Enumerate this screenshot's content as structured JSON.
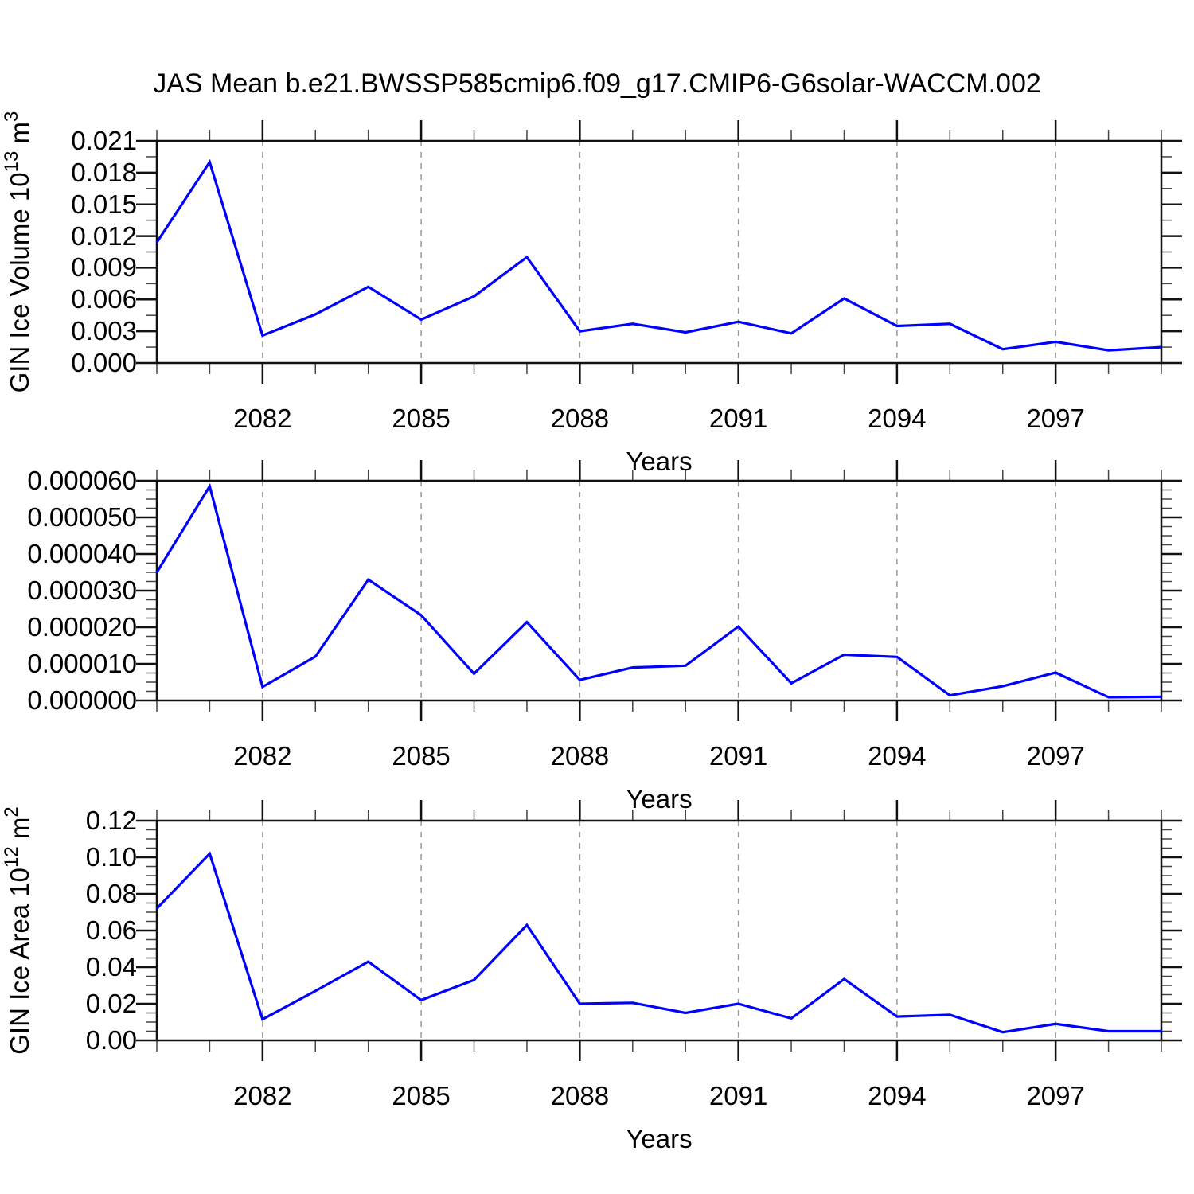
{
  "title": "JAS Mean b.e21.BWSSP585cmip6.f09_g17.CMIP6-G6solar-WACCM.002",
  "style": {
    "line_color": "#0000ff",
    "grid_color": "#999999",
    "frame_color": "#111111",
    "major_tick_color": "#111111",
    "minor_tick_color": "#444444",
    "background": "#ffffff"
  },
  "x_axis": {
    "label": "Years",
    "years": [
      2080,
      2081,
      2082,
      2083,
      2084,
      2085,
      2086,
      2087,
      2088,
      2089,
      2090,
      2091,
      2092,
      2093,
      2094,
      2095,
      2096,
      2097,
      2098,
      2099
    ],
    "labeled_ticks": [
      2082,
      2085,
      2088,
      2091,
      2094,
      2097
    ]
  },
  "chart_data": [
    {
      "type": "line",
      "name": "GIN Ice Volume",
      "ylabel_segments": [
        {
          "t": "GIN Ice Volume 10"
        },
        {
          "t": "13",
          "sup": true
        },
        {
          "t": " m"
        },
        {
          "t": "3",
          "sup": true
        }
      ],
      "xlabel": "Years",
      "x": [
        2080,
        2081,
        2082,
        2083,
        2084,
        2085,
        2086,
        2087,
        2088,
        2089,
        2090,
        2091,
        2092,
        2093,
        2094,
        2095,
        2096,
        2097,
        2098,
        2099
      ],
      "values": [
        0.0114,
        0.019,
        0.0026,
        0.0046,
        0.0072,
        0.0041,
        0.0063,
        0.01,
        0.003,
        0.0037,
        0.0029,
        0.0039,
        0.0028,
        0.0061,
        0.0035,
        0.0037,
        0.0013,
        0.002,
        0.0012,
        0.0015
      ],
      "ylim": [
        0.0,
        0.021
      ],
      "yticks": [
        {
          "v": 0.0,
          "label": "0.000"
        },
        {
          "v": 0.003,
          "label": "0.003"
        },
        {
          "v": 0.006,
          "label": "0.006"
        },
        {
          "v": 0.009,
          "label": "0.009"
        },
        {
          "v": 0.012,
          "label": "0.012"
        },
        {
          "v": 0.015,
          "label": "0.015"
        },
        {
          "v": 0.018,
          "label": "0.018"
        },
        {
          "v": 0.021,
          "label": "0.021"
        }
      ],
      "y_minor_step": 0.0015,
      "x_labeled_ticks": [
        2082,
        2085,
        2088,
        2091,
        2094,
        2097
      ],
      "grid": "vertical-dashed"
    },
    {
      "type": "line",
      "name": "",
      "ylabel_segments": [],
      "xlabel": "Years",
      "x": [
        2080,
        2081,
        2082,
        2083,
        2084,
        2085,
        2086,
        2087,
        2088,
        2089,
        2090,
        2091,
        2092,
        2093,
        2094,
        2095,
        2096,
        2097,
        2098,
        2099
      ],
      "values": [
        3.5e-05,
        5.85e-05,
        3.7e-06,
        1.2e-05,
        3.3e-05,
        2.33e-05,
        7.3e-06,
        2.14e-05,
        5.6e-06,
        9e-06,
        9.5e-06,
        2.02e-05,
        4.7e-06,
        1.25e-05,
        1.19e-05,
        1.4e-06,
        3.9e-06,
        7.6e-06,
        9e-07,
        1e-06
      ],
      "ylim": [
        0.0,
        6e-05
      ],
      "yticks": [
        {
          "v": 0.0,
          "label": "0.000000"
        },
        {
          "v": 1e-05,
          "label": "0.000010"
        },
        {
          "v": 2e-05,
          "label": "0.000020"
        },
        {
          "v": 3e-05,
          "label": "0.000030"
        },
        {
          "v": 4e-05,
          "label": "0.000040"
        },
        {
          "v": 5e-05,
          "label": "0.000050"
        },
        {
          "v": 6e-05,
          "label": "0.000060"
        }
      ],
      "y_minor_step": 2.5e-06,
      "x_labeled_ticks": [
        2082,
        2085,
        2088,
        2091,
        2094,
        2097
      ],
      "grid": "vertical-dashed"
    },
    {
      "type": "line",
      "name": "GIN Ice Area",
      "ylabel_segments": [
        {
          "t": "GIN Ice Area 10"
        },
        {
          "t": "12",
          "sup": true
        },
        {
          "t": " m"
        },
        {
          "t": "2",
          "sup": true
        }
      ],
      "xlabel": "Years",
      "x": [
        2080,
        2081,
        2082,
        2083,
        2084,
        2085,
        2086,
        2087,
        2088,
        2089,
        2090,
        2091,
        2092,
        2093,
        2094,
        2095,
        2096,
        2097,
        2098,
        2099
      ],
      "values": [
        0.072,
        0.102,
        0.0115,
        0.027,
        0.043,
        0.022,
        0.033,
        0.063,
        0.02,
        0.0205,
        0.015,
        0.02,
        0.012,
        0.0335,
        0.013,
        0.014,
        0.0045,
        0.009,
        0.005,
        0.005
      ],
      "ylim": [
        0.0,
        0.12
      ],
      "yticks": [
        {
          "v": 0.0,
          "label": "0.00"
        },
        {
          "v": 0.02,
          "label": "0.02"
        },
        {
          "v": 0.04,
          "label": "0.04"
        },
        {
          "v": 0.06,
          "label": "0.06"
        },
        {
          "v": 0.08,
          "label": "0.08"
        },
        {
          "v": 0.1,
          "label": "0.10"
        },
        {
          "v": 0.12,
          "label": "0.12"
        }
      ],
      "y_minor_step": 0.005,
      "x_labeled_ticks": [
        2082,
        2085,
        2088,
        2091,
        2094,
        2097
      ],
      "grid": "vertical-dashed"
    }
  ]
}
